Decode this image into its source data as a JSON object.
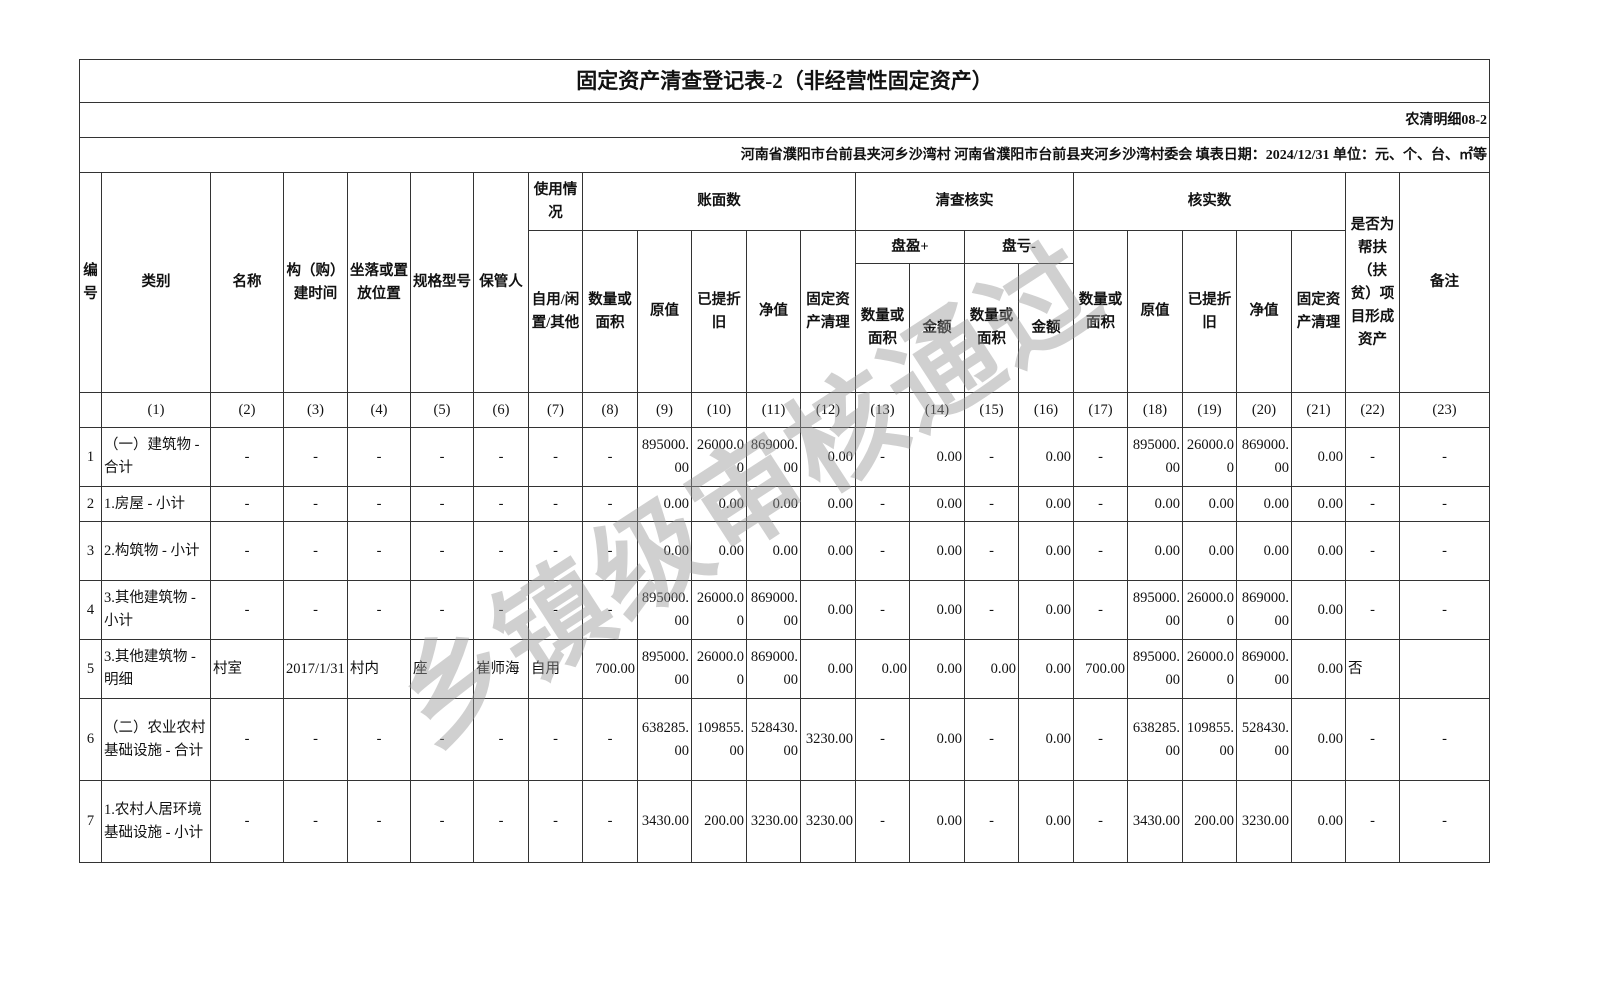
{
  "title": "固定资产清查登记表-2（非经营性固定资产）",
  "form_code": "农清明细08-2",
  "info_line": "河南省濮阳市台前县夹河乡沙湾村  河南省濮阳市台前县夹河乡沙湾村委会  填表日期：2024/12/31   单位：元、个、台、㎡等",
  "watermark": "乡镇级审核通过",
  "headers": {
    "no": "编号",
    "category": "类别",
    "name": "名称",
    "build_time": "构（购）建时间",
    "location": "坐落或置放位置",
    "spec": "规格型号",
    "keeper": "保管人",
    "usage": "使用情况",
    "usage_sub": "自用/闲置/其他",
    "book": "账面数",
    "check": "清查核实",
    "verified": "核实数",
    "qty": "数量或面积",
    "orig": "原值",
    "depr": "已提折旧",
    "net": "净值",
    "clear": "固定资产清理",
    "surplus": "盘盈+",
    "loss": "盘亏-",
    "amount": "金额",
    "poverty": "是否为帮扶（扶贫）项目形成资产",
    "remark": "备注"
  },
  "column_indices": [
    "(1)",
    "(2)",
    "(3)",
    "(4)",
    "(5)",
    "(6)",
    "(7)",
    "(8)",
    "(9)",
    "(10)",
    "(11)",
    "(12)",
    "(13)",
    "(14)",
    "(15)",
    "(16)",
    "(17)",
    "(18)",
    "(19)",
    "(20)",
    "(21)",
    "(22)",
    "(23)"
  ],
  "rows": [
    [
      "1",
      "（一）建筑物 - 合计",
      "-",
      "-",
      "-",
      "-",
      "-",
      "-",
      "-",
      "895000.00",
      "26000.00",
      "869000.00",
      "0.00",
      "-",
      "0.00",
      "-",
      "0.00",
      "-",
      "895000.00",
      "26000.00",
      "869000.00",
      "0.00",
      "-",
      "-"
    ],
    [
      "2",
      "1.房屋 - 小计",
      "-",
      "-",
      "-",
      "-",
      "-",
      "-",
      "-",
      "0.00",
      "0.00",
      "0.00",
      "0.00",
      "-",
      "0.00",
      "-",
      "0.00",
      "-",
      "0.00",
      "0.00",
      "0.00",
      "0.00",
      "-",
      "-"
    ],
    [
      "3",
      "2.构筑物 - 小计",
      "-",
      "-",
      "-",
      "-",
      "-",
      "-",
      "-",
      "0.00",
      "0.00",
      "0.00",
      "0.00",
      "-",
      "0.00",
      "-",
      "0.00",
      "-",
      "0.00",
      "0.00",
      "0.00",
      "0.00",
      "-",
      "-"
    ],
    [
      "4",
      "3.其他建筑物 - 小计",
      "-",
      "-",
      "-",
      "-",
      "-",
      "-",
      "-",
      "895000.00",
      "26000.00",
      "869000.00",
      "0.00",
      "-",
      "0.00",
      "-",
      "0.00",
      "-",
      "895000.00",
      "26000.00",
      "869000.00",
      "0.00",
      "-",
      "-"
    ],
    [
      "5",
      "3.其他建筑物 - 明细",
      "村室",
      "2017/1/31",
      "村内",
      "座",
      "崔师海",
      "自用",
      "700.00",
      "895000.00",
      "26000.00",
      "869000.00",
      "0.00",
      "0.00",
      "0.00",
      "0.00",
      "0.00",
      "700.00",
      "895000.00",
      "26000.00",
      "869000.00",
      "0.00",
      "否",
      ""
    ],
    [
      "6",
      "（二）农业农村基础设施 - 合计",
      "-",
      "-",
      "-",
      "-",
      "-",
      "-",
      "-",
      "638285.00",
      "109855.00",
      "528430.00",
      "3230.00",
      "-",
      "0.00",
      "-",
      "0.00",
      "-",
      "638285.00",
      "109855.00",
      "528430.00",
      "0.00",
      "-",
      "-"
    ],
    [
      "7",
      "1.农村人居环境基础设施 - 小计",
      "-",
      "-",
      "-",
      "-",
      "-",
      "-",
      "-",
      "3430.00",
      "200.00",
      "3230.00",
      "3230.00",
      "-",
      "0.00",
      "-",
      "0.00",
      "-",
      "3430.00",
      "200.00",
      "3230.00",
      "0.00",
      "-",
      "-"
    ]
  ]
}
